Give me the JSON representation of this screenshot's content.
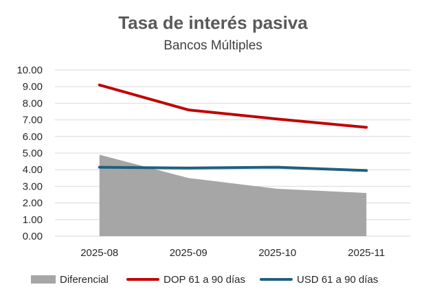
{
  "chart_data": {
    "type": "line",
    "title": "Tasa de interés pasiva",
    "subtitle": "Bancos Múltiples",
    "categories": [
      "2025-08",
      "2025-09",
      "2025-10",
      "2025-11"
    ],
    "ylim": [
      0,
      10
    ],
    "yticks": [
      "0.00",
      "1.00",
      "2.00",
      "3.00",
      "4.00",
      "5.00",
      "6.00",
      "7.00",
      "8.00",
      "9.00",
      "10.00"
    ],
    "grid": true,
    "legend_position": "bottom",
    "series": [
      {
        "name": "Diferencial",
        "kind": "area",
        "color": "#a6a6a6",
        "values": [
          4.9,
          3.5,
          2.85,
          2.6
        ]
      },
      {
        "name": "DOP 61 a 90 días",
        "kind": "line",
        "color": "#c00000",
        "values": [
          9.1,
          7.6,
          7.05,
          6.55
        ]
      },
      {
        "name": "USD 61 a 90 días",
        "kind": "line",
        "color": "#1f5f7f",
        "values": [
          4.15,
          4.1,
          4.15,
          3.95
        ]
      }
    ]
  }
}
